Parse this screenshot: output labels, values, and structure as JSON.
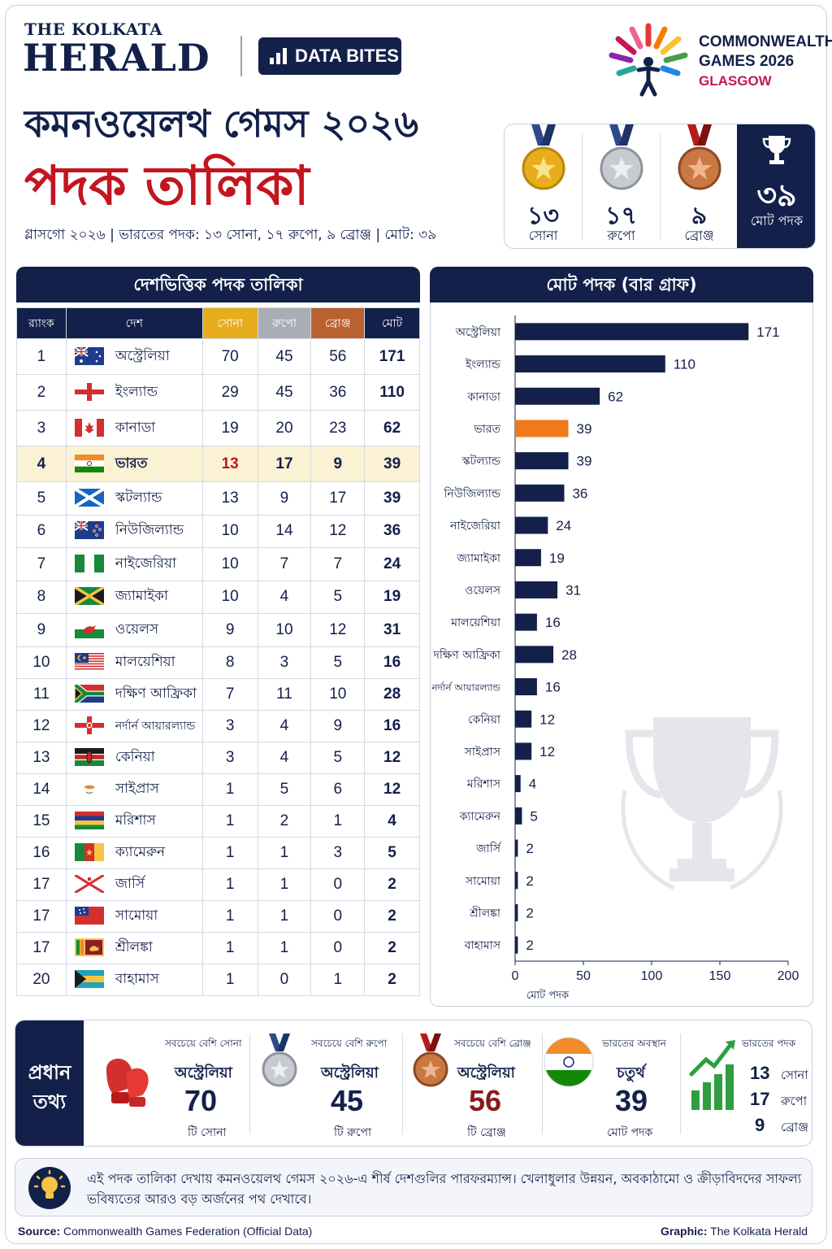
{
  "brand": {
    "top": "THE KOLKATA",
    "main": "HERALD",
    "badge": "DATA BITES"
  },
  "event_logo": {
    "line1": "COMMONWEALTH",
    "line2": "GAMES 2026",
    "city": "GLASGOW"
  },
  "title": {
    "line1": "কমনওয়েলথ গেমস ২০২৬",
    "line2": "পদক তালিকা"
  },
  "subline": "গ্লাসগো ২০২৬ | ভারতের পদক: ১৩ সোনা, ১৭ রুপো, ৯ ব্রোঞ্জ | মোট: ৩৯",
  "india_summary": {
    "gold": {
      "value": "১৩",
      "label": "সোনা"
    },
    "silver": {
      "value": "১৭",
      "label": "রুপো"
    },
    "bronze": {
      "value": "৯",
      "label": "ব্রোঞ্জ"
    },
    "total": {
      "value": "৩৯",
      "label": "মোট পদক"
    },
    "colors": {
      "gold": "#e7ad1c",
      "silver": "#b3b7bf",
      "bronze": "#b9622f",
      "navy": "#13204a"
    }
  },
  "table": {
    "title": "দেশভিত্তিক পদক তালিকা",
    "headers": {
      "rank": "র‍্যাংক",
      "country": "দেশ",
      "gold": "সোনা",
      "silver": "রুপো",
      "bronze": "ব্রোঞ্জ",
      "total": "মোট"
    },
    "rows": [
      {
        "rank": "1",
        "country": "অস্ট্রেলিয়া",
        "gold": "70",
        "silver": "45",
        "bronze": "56",
        "total": "171",
        "flag": "australia"
      },
      {
        "rank": "2",
        "country": "ইংল্যান্ড",
        "gold": "29",
        "silver": "45",
        "bronze": "36",
        "total": "110",
        "flag": "england"
      },
      {
        "rank": "3",
        "country": "কানাডা",
        "gold": "19",
        "silver": "20",
        "bronze": "23",
        "total": "62",
        "flag": "canada"
      },
      {
        "rank": "4",
        "country": "ভারত",
        "gold": "13",
        "silver": "17",
        "bronze": "9",
        "total": "39",
        "flag": "india"
      },
      {
        "rank": "5",
        "country": "স্কটল্যান্ড",
        "gold": "13",
        "silver": "9",
        "bronze": "17",
        "total": "39",
        "flag": "scotland"
      },
      {
        "rank": "6",
        "country": "নিউজিল্যান্ড",
        "gold": "10",
        "silver": "14",
        "bronze": "12",
        "total": "36",
        "flag": "new-zealand"
      },
      {
        "rank": "7",
        "country": "নাইজেরিয়া",
        "gold": "10",
        "silver": "7",
        "bronze": "7",
        "total": "24",
        "flag": "nigeria"
      },
      {
        "rank": "8",
        "country": "জ্যামাইকা",
        "gold": "10",
        "silver": "4",
        "bronze": "5",
        "total": "19",
        "flag": "jamaica"
      },
      {
        "rank": "9",
        "country": "ওয়েলস",
        "gold": "9",
        "silver": "10",
        "bronze": "12",
        "total": "31",
        "flag": "wales"
      },
      {
        "rank": "10",
        "country": "মালয়েশিয়া",
        "gold": "8",
        "silver": "3",
        "bronze": "5",
        "total": "16",
        "flag": "malaysia"
      },
      {
        "rank": "11",
        "country": "দক্ষিণ আফ্রিকা",
        "gold": "7",
        "silver": "11",
        "bronze": "10",
        "total": "28",
        "flag": "south-africa"
      },
      {
        "rank": "12",
        "country": "নর্দার্ন আয়ারল্যান্ড",
        "gold": "3",
        "silver": "4",
        "bronze": "9",
        "total": "16",
        "flag": "northern-ireland"
      },
      {
        "rank": "13",
        "country": "কেনিয়া",
        "gold": "3",
        "silver": "4",
        "bronze": "5",
        "total": "12",
        "flag": "kenya"
      },
      {
        "rank": "14",
        "country": "সাইপ্রাস",
        "gold": "1",
        "silver": "5",
        "bronze": "6",
        "total": "12",
        "flag": "cyprus"
      },
      {
        "rank": "15",
        "country": "মরিশাস",
        "gold": "1",
        "silver": "2",
        "bronze": "1",
        "total": "4",
        "flag": "mauritius"
      },
      {
        "rank": "16",
        "country": "ক্যামেরুন",
        "gold": "1",
        "silver": "1",
        "bronze": "3",
        "total": "5",
        "flag": "cameroon"
      },
      {
        "rank": "17",
        "country": "জার্সি",
        "gold": "1",
        "silver": "1",
        "bronze": "0",
        "total": "2",
        "flag": "jersey"
      },
      {
        "rank": "17",
        "country": "সামোয়া",
        "gold": "1",
        "silver": "1",
        "bronze": "0",
        "total": "2",
        "flag": "samoa"
      },
      {
        "rank": "17",
        "country": "শ্রীলঙ্কা",
        "gold": "1",
        "silver": "1",
        "bronze": "0",
        "total": "2",
        "flag": "sri-lanka"
      },
      {
        "rank": "20",
        "country": "বাহামাস",
        "gold": "1",
        "silver": "0",
        "bronze": "1",
        "total": "2",
        "flag": "bahamas"
      }
    ],
    "highlight_rank": "4",
    "highlight_color": "#fbf1d3"
  },
  "chart_data": {
    "type": "bar",
    "orientation": "horizontal",
    "title": "মোট পদক (বার গ্রাফ)",
    "xlabel": "মোট পদক",
    "xlim": [
      0,
      200
    ],
    "xticks": [
      "0",
      "50",
      "100",
      "150",
      "200"
    ],
    "categories": [
      "অস্ট্রেলিয়া",
      "ইংল্যান্ড",
      "কানাডা",
      "ভারত",
      "স্কটল্যান্ড",
      "নিউজিল্যান্ড",
      "নাইজেরিয়া",
      "জ্যামাইকা",
      "ওয়েলস",
      "মালয়েশিয়া",
      "দক্ষিণ আফ্রিকা",
      "নর্দার্ন আয়ারল্যান্ড",
      "কেনিয়া",
      "সাইপ্রাস",
      "মরিশাস",
      "ক্যামেরুন",
      "জার্সি",
      "সামোয়া",
      "শ্রীলঙ্কা",
      "বাহামাস"
    ],
    "values": [
      171,
      110,
      62,
      39,
      39,
      36,
      24,
      19,
      31,
      16,
      28,
      16,
      12,
      12,
      4,
      5,
      2,
      2,
      2,
      2
    ],
    "bar_color": "#13204a",
    "highlight_color": "#f07a1a",
    "highlight_category": "ভারত"
  },
  "key_facts": {
    "label": "প্রধান তথ্য",
    "items": [
      {
        "title": "সবচেয়ে বেশি সোনা",
        "country": "অস্ট্রেলিয়া",
        "value": "70",
        "unit": "টি সোনা",
        "icon": "boxing-gloves-icon",
        "color": "#13204a"
      },
      {
        "title": "সবচেয়ে বেশি রুপো",
        "country": "অস্ট্রেলিয়া",
        "value": "45",
        "unit": "টি রুপো",
        "icon": "silver-medal-icon",
        "color": "#13204a"
      },
      {
        "title": "সবচেয়ে বেশি ব্রোঞ্জ",
        "country": "অস্ট্রেলিয়া",
        "value": "56",
        "unit": "টি ব্রোঞ্জ",
        "icon": "bronze-medal-icon",
        "color": "#8b1a1a"
      },
      {
        "title": "ভারতের অবস্থান",
        "country": "চতুর্থ",
        "value": "39",
        "unit": "মোট পদক",
        "icon": "india-flag-icon",
        "color": "#13204a"
      }
    ],
    "india_medals": {
      "title": "ভারতের পদক",
      "icon": "growth-chart-icon",
      "rows": [
        {
          "value": "13",
          "label": "সোনা"
        },
        {
          "value": "17",
          "label": "রুপো"
        },
        {
          "value": "9",
          "label": "ব্রোঞ্জ"
        }
      ]
    }
  },
  "note": "এই পদক তালিকা দেখায় কমনওয়েলথ গেমস ২০২৬-এ শীর্ষ দেশগুলির পারফরম্যান্স। খেলাধুলার উন্নয়ন, অবকাঠামো ও ক্রীড়াবিদদের সাফল্য ভবিষ্যতের আরও বড় অর্জনের পথ দেখাবে।",
  "footer": {
    "source_label": "Source:",
    "source": "Commonwealth Games Federation (Official Data)",
    "graphic_label": "Graphic:",
    "graphic": "The Kolkata Herald"
  }
}
